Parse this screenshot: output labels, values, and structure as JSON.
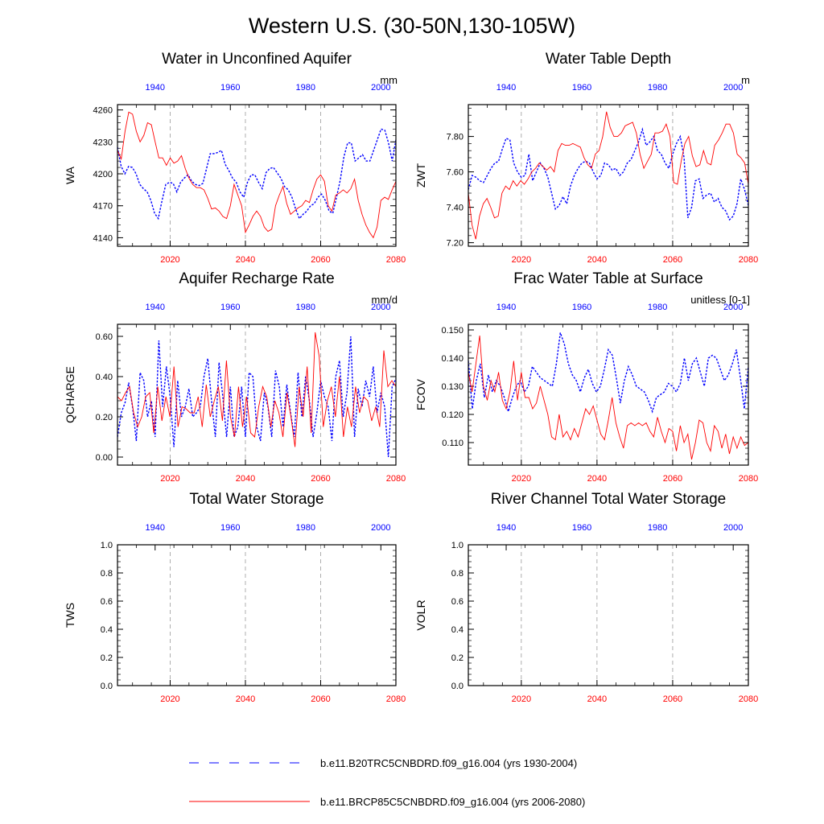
{
  "figure_title": "Western U.S. (30-50N,130-105W)",
  "colors": {
    "historical": "#0000ff",
    "future": "#ff0000",
    "grid": "#9a9a9a",
    "axis": "#000000"
  },
  "top_axis_ticks": [
    "1940",
    "1960",
    "1980",
    "2000"
  ],
  "bottom_axis_ticks": [
    "2020",
    "2040",
    "2060",
    "2080"
  ],
  "legend": [
    {
      "label": "b.e11.B20TRC5CNBDRD.f09_g16.004 (yrs 1930-2004)",
      "color": "#0000ff",
      "style": "dashed"
    },
    {
      "label": "b.e11.BRCP85C5CNBDRD.f09_g16.004 (yrs 2006-2080)",
      "color": "#ff0000",
      "style": "solid"
    }
  ],
  "chart_data": [
    {
      "type": "line",
      "title": "Water in Unconfined Aquifer",
      "ylabel": "WA",
      "units": "mm",
      "ylim": [
        4132,
        4265
      ],
      "yticks": [
        "4140",
        "4170",
        "4200",
        "4230",
        "4260"
      ],
      "x_bottom": [
        2006,
        2080
      ],
      "x_top": [
        1930,
        2004
      ],
      "series": [
        {
          "name": "b.e11.B20TRC5CNBDRD.f09_g16.004 (yrs 1930-2004)",
          "values": [
            4225,
            4207,
            4200,
            4207,
            4206,
            4200,
            4190,
            4186,
            4183,
            4175,
            4163,
            4158,
            4175,
            4190,
            4192,
            4191,
            4183,
            4192,
            4196,
            4199,
            4193,
            4190,
            4189,
            4191,
            4205,
            4219,
            4219,
            4220,
            4222,
            4209,
            4203,
            4196,
            4192,
            4183,
            4178,
            4192,
            4199,
            4199,
            4192,
            4186,
            4201,
            4205,
            4206,
            4201,
            4196,
            4188,
            4185,
            4178,
            4167,
            4158,
            4162,
            4165,
            4170,
            4172,
            4178,
            4181,
            4175,
            4165,
            4163,
            4178,
            4194,
            4216,
            4229,
            4229,
            4212,
            4215,
            4218,
            4212,
            4212,
            4222,
            4232,
            4242,
            4241,
            4229,
            4212,
            4232
          ]
        },
        {
          "name": "b.e11.BRCP85C5CNBDRD.f09_g16.004 (yrs 2006-2080)",
          "values": [
            4222,
            4214,
            4240,
            4258,
            4256,
            4240,
            4230,
            4236,
            4248,
            4246,
            4230,
            4215,
            4215,
            4208,
            4215,
            4210,
            4212,
            4217,
            4205,
            4196,
            4190,
            4187,
            4187,
            4185,
            4177,
            4167,
            4168,
            4165,
            4160,
            4158,
            4170,
            4190,
            4180,
            4170,
            4145,
            4152,
            4160,
            4165,
            4160,
            4150,
            4146,
            4148,
            4170,
            4180,
            4188,
            4172,
            4162,
            4165,
            4168,
            4170,
            4175,
            4173,
            4185,
            4195,
            4199,
            4193,
            4170,
            4165,
            4180,
            4182,
            4185,
            4182,
            4186,
            4195,
            4175,
            4162,
            4152,
            4145,
            4140,
            4150,
            4175,
            4178,
            4176,
            4185,
            4193
          ]
        }
      ]
    },
    {
      "type": "line",
      "title": "Water Table Depth",
      "ylabel": "ZWT",
      "units": "m",
      "ylim": [
        7.18,
        7.98
      ],
      "yticks": [
        "7.20",
        "7.40",
        "7.60",
        "7.80"
      ],
      "x_bottom": [
        2006,
        2080
      ],
      "x_top": [
        1930,
        2004
      ],
      "series": [
        {
          "name": "b.e11.B20TRC5CNBDRD.f09_g16.004 (yrs 1930-2004)",
          "values": [
            7.5,
            7.58,
            7.57,
            7.55,
            7.54,
            7.58,
            7.62,
            7.65,
            7.66,
            7.73,
            7.79,
            7.78,
            7.65,
            7.6,
            7.57,
            7.58,
            7.7,
            7.55,
            7.6,
            7.65,
            7.62,
            7.57,
            7.48,
            7.39,
            7.41,
            7.46,
            7.42,
            7.52,
            7.58,
            7.62,
            7.65,
            7.66,
            7.65,
            7.6,
            7.56,
            7.58,
            7.65,
            7.64,
            7.61,
            7.62,
            7.58,
            7.6,
            7.65,
            7.67,
            7.72,
            7.77,
            7.84,
            7.75,
            7.77,
            7.8,
            7.72,
            7.7,
            7.65,
            7.62,
            7.7,
            7.76,
            7.8,
            7.68,
            7.34,
            7.4,
            7.55,
            7.56,
            7.45,
            7.47,
            7.48,
            7.43,
            7.45,
            7.4,
            7.38,
            7.33,
            7.35,
            7.42,
            7.56,
            7.5,
            7.41
          ]
        },
        {
          "name": "b.e11.BRCP85C5CNBDRD.f09_g16.004 (yrs 2006-2080)",
          "values": [
            7.48,
            7.3,
            7.22,
            7.35,
            7.42,
            7.45,
            7.4,
            7.34,
            7.35,
            7.48,
            7.52,
            7.5,
            7.55,
            7.52,
            7.55,
            7.53,
            7.56,
            7.6,
            7.62,
            7.65,
            7.63,
            7.61,
            7.63,
            7.6,
            7.72,
            7.76,
            7.75,
            7.75,
            7.76,
            7.75,
            7.74,
            7.68,
            7.64,
            7.62,
            7.7,
            7.72,
            7.8,
            7.94,
            7.85,
            7.8,
            7.8,
            7.82,
            7.86,
            7.87,
            7.88,
            7.82,
            7.7,
            7.62,
            7.66,
            7.7,
            7.82,
            7.82,
            7.83,
            7.87,
            7.8,
            7.54,
            7.53,
            7.66,
            7.76,
            7.8,
            7.69,
            7.63,
            7.64,
            7.72,
            7.65,
            7.64,
            7.75,
            7.78,
            7.82,
            7.87,
            7.87,
            7.82,
            7.7,
            7.68,
            7.65,
            7.53
          ]
        }
      ]
    },
    {
      "type": "line",
      "title": "Aquifer Recharge Rate",
      "ylabel": "QCHARGE",
      "units": "mm/d",
      "ylim": [
        -0.04,
        0.66
      ],
      "yticks": [
        "0.00",
        "0.20",
        "0.40",
        "0.60"
      ],
      "x_bottom": [
        2006,
        2080
      ],
      "x_top": [
        1930,
        2004
      ],
      "series": [
        {
          "name": "b.e11.B20TRC5CNBDRD.f09_g16.004 (yrs 1930-2004)",
          "values": [
            0.1,
            0.22,
            0.27,
            0.37,
            0.25,
            0.08,
            0.42,
            0.38,
            0.2,
            0.28,
            0.1,
            0.58,
            0.25,
            0.45,
            0.3,
            0.05,
            0.38,
            0.2,
            0.25,
            0.34,
            0.2,
            0.22,
            0.25,
            0.4,
            0.49,
            0.28,
            0.1,
            0.47,
            0.3,
            0.1,
            0.35,
            0.1,
            0.15,
            0.35,
            0.1,
            0.42,
            0.4,
            0.15,
            0.08,
            0.32,
            0.25,
            0.1,
            0.43,
            0.35,
            0.15,
            0.36,
            0.22,
            0.1,
            0.42,
            0.2,
            0.4,
            0.28,
            0.1,
            0.22,
            0.38,
            0.3,
            0.25,
            0.08,
            0.4,
            0.48,
            0.2,
            0.32,
            0.6,
            0.1,
            0.34,
            0.25,
            0.38,
            0.3,
            0.45,
            0.22,
            0.32,
            0.25,
            0.0,
            0.35,
            0.39
          ]
        },
        {
          "name": "b.e11.BRCP85C5CNBDRD.f09_g16.004 (yrs 2006-2080)",
          "values": [
            0.3,
            0.28,
            0.32,
            0.35,
            0.22,
            0.15,
            0.2,
            0.3,
            0.32,
            0.12,
            0.35,
            0.18,
            0.3,
            0.2,
            0.45,
            0.15,
            0.25,
            0.24,
            0.22,
            0.22,
            0.3,
            0.15,
            0.36,
            0.2,
            0.28,
            0.35,
            0.18,
            0.48,
            0.2,
            0.1,
            0.35,
            0.15,
            0.3,
            0.12,
            0.1,
            0.25,
            0.35,
            0.3,
            0.15,
            0.28,
            0.22,
            0.1,
            0.32,
            0.2,
            0.05,
            0.35,
            0.2,
            0.45,
            0.12,
            0.62,
            0.5,
            0.15,
            0.28,
            0.35,
            0.2,
            0.4,
            0.1,
            0.25,
            0.15,
            0.35,
            0.22,
            0.3,
            0.28,
            0.18,
            0.25,
            0.15,
            0.53,
            0.35,
            0.38,
            0.35
          ]
        }
      ]
    },
    {
      "type": "line",
      "title": "Frac Water Table at Surface",
      "ylabel": "FCOV",
      "units": "unitless [0-1]",
      "ylim": [
        0.102,
        0.152
      ],
      "yticks": [
        "0.110",
        "0.120",
        "0.130",
        "0.140",
        "0.150"
      ],
      "x_bottom": [
        2006,
        2080
      ],
      "x_top": [
        1930,
        2004
      ],
      "series": [
        {
          "name": "b.e11.B20TRC5CNBDRD.f09_g16.004 (yrs 1930-2004)",
          "values": [
            0.139,
            0.122,
            0.132,
            0.138,
            0.126,
            0.134,
            0.128,
            0.132,
            0.13,
            0.126,
            0.121,
            0.126,
            0.13,
            0.132,
            0.128,
            0.13,
            0.137,
            0.135,
            0.133,
            0.132,
            0.131,
            0.13,
            0.138,
            0.149,
            0.145,
            0.138,
            0.134,
            0.132,
            0.128,
            0.133,
            0.136,
            0.131,
            0.128,
            0.13,
            0.136,
            0.143,
            0.141,
            0.133,
            0.124,
            0.132,
            0.137,
            0.134,
            0.13,
            0.129,
            0.128,
            0.125,
            0.121,
            0.126,
            0.127,
            0.128,
            0.131,
            0.13,
            0.128,
            0.131,
            0.14,
            0.132,
            0.138,
            0.14,
            0.135,
            0.13,
            0.14,
            0.141,
            0.14,
            0.136,
            0.132,
            0.134,
            0.138,
            0.143,
            0.133,
            0.122,
            0.137
          ]
        },
        {
          "name": "b.e11.BRCP85C5CNBDRD.f09_g16.004 (yrs 2006-2080)",
          "values": [
            0.135,
            0.128,
            0.138,
            0.148,
            0.13,
            0.125,
            0.132,
            0.128,
            0.135,
            0.125,
            0.122,
            0.128,
            0.139,
            0.125,
            0.135,
            0.126,
            0.126,
            0.122,
            0.124,
            0.13,
            0.125,
            0.12,
            0.112,
            0.111,
            0.12,
            0.112,
            0.114,
            0.111,
            0.115,
            0.112,
            0.117,
            0.122,
            0.12,
            0.123,
            0.118,
            0.113,
            0.111,
            0.118,
            0.126,
            0.117,
            0.112,
            0.108,
            0.116,
            0.117,
            0.116,
            0.117,
            0.116,
            0.117,
            0.114,
            0.112,
            0.119,
            0.114,
            0.11,
            0.115,
            0.114,
            0.107,
            0.116,
            0.11,
            0.113,
            0.104,
            0.11,
            0.118,
            0.117,
            0.11,
            0.107,
            0.116,
            0.114,
            0.108,
            0.113,
            0.106,
            0.112,
            0.108,
            0.112,
            0.109,
            0.11
          ]
        }
      ]
    },
    {
      "type": "line",
      "title": "Total Water Storage",
      "ylabel": "TWS",
      "units": "",
      "ylim": [
        0,
        1
      ],
      "yticks": [
        "0.0",
        "0.2",
        "0.4",
        "0.6",
        "0.8",
        "1.0"
      ],
      "x_bottom": [
        2006,
        2080
      ],
      "x_top": [
        1930,
        2004
      ],
      "series": []
    },
    {
      "type": "line",
      "title": "River Channel Total Water Storage",
      "ylabel": "VOLR",
      "units": "",
      "ylim": [
        0,
        1
      ],
      "yticks": [
        "0.0",
        "0.2",
        "0.4",
        "0.6",
        "0.8",
        "1.0"
      ],
      "x_bottom": [
        2006,
        2080
      ],
      "x_top": [
        1930,
        2004
      ],
      "series": []
    }
  ]
}
